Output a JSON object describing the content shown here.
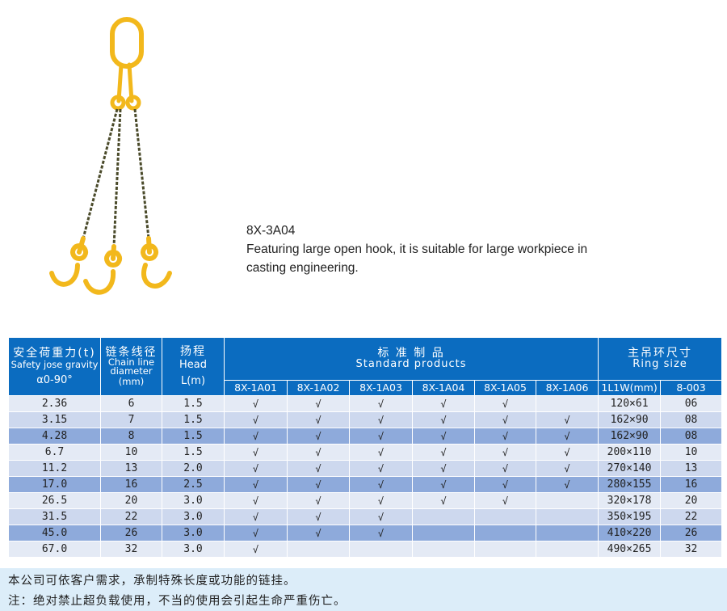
{
  "product": {
    "model": "8X-3A04",
    "description": "Featuring large open hook, it is suitable for large workpiece in casting engineering."
  },
  "table": {
    "headers": {
      "load_cn": "安全荷重力(t)",
      "load_en": "Safety jose gravity",
      "load_angle": "α0-90°",
      "chain_cn": "链条线径",
      "chain_en": "Chain line diameter",
      "chain_unit": "(mm)",
      "head_cn": "扬程",
      "head_en": "Head",
      "head_unit": "L(m)",
      "std_cn": "标 准 制 品",
      "std_en": "Standard products",
      "ring_cn": "主吊环尺寸",
      "ring_en": "Ring size",
      "models": [
        "8X-1A01",
        "8X-1A02",
        "8X-1A03",
        "8X-1A04",
        "8X-1A05",
        "8X-1A06"
      ],
      "ring_dim": "1L1W(mm)",
      "ring_code": "8-003"
    },
    "rows": [
      {
        "load": "2.36",
        "chain": "6",
        "head": "1.5",
        "checks": [
          "√",
          "√",
          "√",
          "√",
          "√",
          ""
        ],
        "ring": "120×61",
        "code": "06"
      },
      {
        "load": "3.15",
        "chain": "7",
        "head": "1.5",
        "checks": [
          "√",
          "√",
          "√",
          "√",
          "√",
          "√"
        ],
        "ring": "162×90",
        "code": "08"
      },
      {
        "load": "4.28",
        "chain": "8",
        "head": "1.5",
        "checks": [
          "√",
          "√",
          "√",
          "√",
          "√",
          "√"
        ],
        "ring": "162×90",
        "code": "08"
      },
      {
        "load": "6.7",
        "chain": "10",
        "head": "1.5",
        "checks": [
          "√",
          "√",
          "√",
          "√",
          "√",
          "√"
        ],
        "ring": "200×110",
        "code": "10"
      },
      {
        "load": "11.2",
        "chain": "13",
        "head": "2.0",
        "checks": [
          "√",
          "√",
          "√",
          "√",
          "√",
          "√"
        ],
        "ring": "270×140",
        "code": "13"
      },
      {
        "load": "17.0",
        "chain": "16",
        "head": "2.5",
        "checks": [
          "√",
          "√",
          "√",
          "√",
          "√",
          "√"
        ],
        "ring": "280×155",
        "code": "16"
      },
      {
        "load": "26.5",
        "chain": "20",
        "head": "3.0",
        "checks": [
          "√",
          "√",
          "√",
          "√",
          "√",
          ""
        ],
        "ring": "320×178",
        "code": "20"
      },
      {
        "load": "31.5",
        "chain": "22",
        "head": "3.0",
        "checks": [
          "√",
          "√",
          "√",
          "",
          "",
          ""
        ],
        "ring": "350×195",
        "code": "22"
      },
      {
        "load": "45.0",
        "chain": "26",
        "head": "3.0",
        "checks": [
          "√",
          "√",
          "√",
          "",
          "",
          ""
        ],
        "ring": "410×220",
        "code": "26"
      },
      {
        "load": "67.0",
        "chain": "32",
        "head": "3.0",
        "checks": [
          "√",
          "",
          "",
          "",
          "",
          ""
        ],
        "ring": "490×265",
        "code": "32"
      }
    ]
  },
  "footer": {
    "line1": "本公司可依客户需求，承制特殊长度或功能的链挂。",
    "line2": "注：绝对禁止超负载使用，不当的使用会引起生命严重伤亡。"
  },
  "colors": {
    "header": "#0b6cc0",
    "row_light": "#e4eaf5",
    "row_mid": "#cdd8ee",
    "row_dark": "#8eaadb",
    "footer": "#dcedf9",
    "metal": "#f2b81c"
  }
}
